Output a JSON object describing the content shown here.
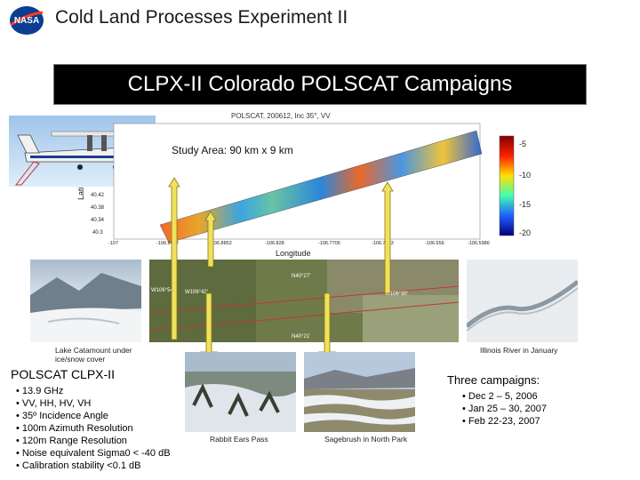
{
  "header": {
    "title": "Cold Land Processes Experiment II",
    "logo_text": "NASA"
  },
  "banner": {
    "title": "CLPX-II Colorado POLSCAT Campaigns"
  },
  "map": {
    "plot_title": "POLSCAT, 200612, Inc 35°, VV",
    "study_area": "Study Area: 90 km x 9 km",
    "ylabel": "Lati",
    "xlabel": "Longitude",
    "lat_ticks": [
      "40.42",
      "40.38",
      "40.34",
      "40.3"
    ],
    "lon_ticks": [
      "-107",
      "-106.9422",
      "-106.8852",
      "-106.828",
      "-106.7706",
      "-106.7133",
      "-106.656",
      "-106.5986"
    ],
    "colorbar_ticks": [
      "-5",
      "-10",
      "-15",
      "-20"
    ],
    "satellite_labels": [
      "W106°54'",
      "W106°42'",
      "N40°27'",
      "W106°30'",
      "N40°21'"
    ]
  },
  "photos": {
    "lake_caption": "Lake Catamount under ice/snow cover",
    "river_caption": "Illinois River in January",
    "rabbit_caption": "Rabbit Ears Pass",
    "sagebrush_caption": "Sagebrush in North Park"
  },
  "polscat": {
    "heading": "POLSCAT CLPX-II",
    "specs": [
      "• 13.9 GHz",
      "• VV, HH, HV, VH",
      "• 35º Incidence Angle",
      "• 100m Azimuth Resolution",
      "• 120m Range Resolution",
      "• Noise equivalent Sigma0 < -40 dB",
      "• Calibration stability <0.1 dB"
    ]
  },
  "campaigns": {
    "heading": "Three campaigns:",
    "items": [
      "• Dec 2 – 5, 2006",
      "• Jan 25 – 30, 2007",
      "• Feb 22-23, 2007"
    ]
  },
  "colors": {
    "banner_bg": "#000000",
    "banner_text": "#ffffff",
    "nasa_blue": "#0b3d91",
    "nasa_red": "#fc3d21"
  }
}
